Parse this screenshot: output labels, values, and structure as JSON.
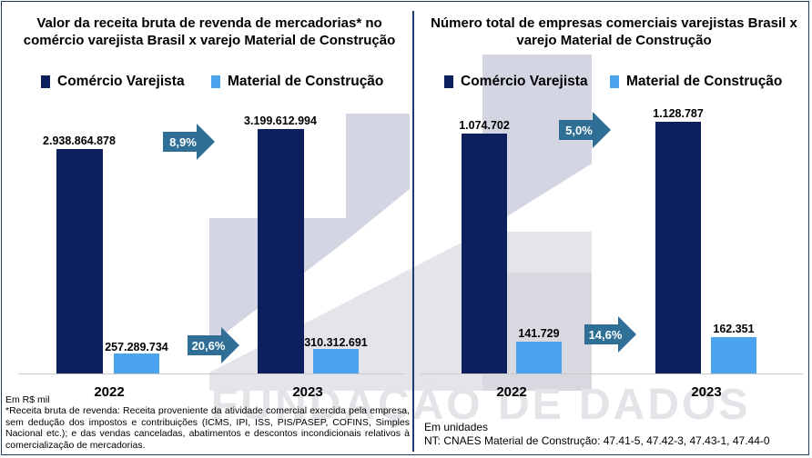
{
  "watermark": "FUNDAÇÃO DE DADOS",
  "colors": {
    "varejo": "#0d1f5c",
    "material": "#4aa3ee",
    "arrow": "#2f6f96",
    "divider": "#1f3a6e"
  },
  "left": {
    "title1": "Valor da receita bruta de revenda de mercadorias* no",
    "title2": "comércio varejista Brasil x  varejo Material de Construção",
    "legend": [
      "Comércio Varejista",
      "Material de Construção"
    ],
    "growth_varejo": "8,9%",
    "growth_material": "20,6%",
    "unit": "Em R$ mil",
    "footnote": "*Receita bruta de revenda: Receita proveniente da atividade comercial exercida pela empresa, sem dedução dos impostos e contribuições (ICMS, IPI, ISS, PIS/PASEP, COFINS, Simples Nacional etc.); e das vendas canceladas, abatimentos e descontos incondicionais relativos à comercialização de mercadorias."
  },
  "right": {
    "title1": "Número total de empresas comerciais varejistas Brasil x",
    "title2": "varejo Material de Construção",
    "legend": [
      "Comércio Varejista",
      "Material de Construção"
    ],
    "growth_varejo": "5,0%",
    "growth_material": "14,6%",
    "unit": "Em unidades",
    "footnote": "NT: CNAES Material de Construção: 47.41-5, 47.42-3, 47.43-1, 47.44-0"
  },
  "chart_data": [
    {
      "type": "bar",
      "title": "Valor da receita bruta de revenda de mercadorias* no comércio varejista Brasil x varejo Material de Construção",
      "categories": [
        "2022",
        "2023"
      ],
      "series": [
        {
          "name": "Comércio Varejista",
          "values": [
            2938864878,
            3199612994
          ],
          "labels": [
            "2.938.864.878",
            "3.199.612.994"
          ]
        },
        {
          "name": "Material de Construção",
          "values": [
            257289734,
            310312691
          ],
          "labels": [
            "257.289.734",
            "310.312.691"
          ]
        }
      ],
      "growth": {
        "Comércio Varejista": "8,9%",
        "Material de Construção": "20,6%"
      },
      "unit": "Em R$ mil"
    },
    {
      "type": "bar",
      "title": "Número total de empresas comerciais varejistas Brasil x varejo Material de Construção",
      "categories": [
        "2022",
        "2023"
      ],
      "series": [
        {
          "name": "Comércio Varejista",
          "values": [
            1074702,
            1128787
          ],
          "labels": [
            "1.074.702",
            "1.128.787"
          ]
        },
        {
          "name": "Material de Construção",
          "values": [
            141729,
            162351
          ],
          "labels": [
            "141.729",
            "162.351"
          ]
        }
      ],
      "growth": {
        "Comércio Varejista": "5,0%",
        "Material de Construção": "14,6%"
      },
      "unit": "Em unidades"
    }
  ]
}
